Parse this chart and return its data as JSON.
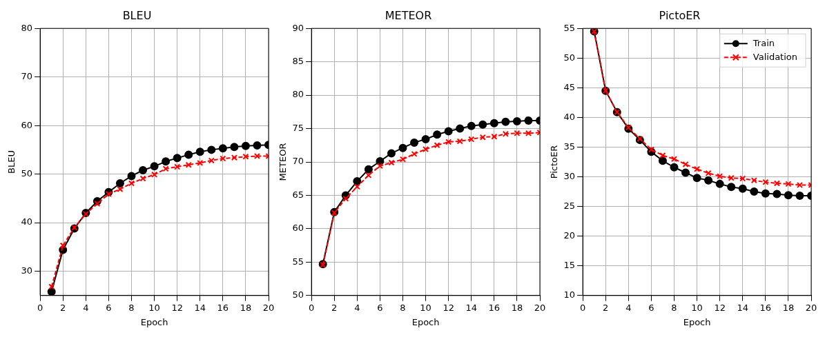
{
  "chart_data": [
    {
      "type": "line",
      "title": "BLEU",
      "xlabel": "Epoch",
      "ylabel": "BLEU",
      "x": [
        1,
        2,
        3,
        4,
        5,
        6,
        7,
        8,
        9,
        10,
        11,
        12,
        13,
        14,
        15,
        16,
        17,
        18,
        19,
        20
      ],
      "xlim": [
        0,
        20
      ],
      "xticks": [
        0,
        2,
        4,
        6,
        8,
        10,
        12,
        14,
        16,
        18,
        20
      ],
      "ylim": [
        25,
        80
      ],
      "yticks": [
        30,
        40,
        50,
        60,
        70,
        80
      ],
      "grid": true,
      "legend": false,
      "series": [
        {
          "color": "#000000",
          "marker": "circle",
          "line_style": "solid",
          "values": [
            25.8,
            34.4,
            38.8,
            42,
            44.4,
            46.3,
            48.1,
            49.6,
            50.8,
            51.6,
            52.6,
            53.3,
            54,
            54.6,
            55,
            55.3,
            55.6,
            55.8,
            55.9,
            56
          ]
        },
        {
          "color": "#ff0000",
          "marker": "cross",
          "line_style": "dashed",
          "values": [
            26.8,
            35.3,
            39,
            41.8,
            43.9,
            45.9,
            46.9,
            48.1,
            49.1,
            49.9,
            51.1,
            51.5,
            51.9,
            52.3,
            52.8,
            53.2,
            53.4,
            53.6,
            53.7,
            53.7
          ]
        }
      ]
    },
    {
      "type": "line",
      "title": "METEOR",
      "xlabel": "Epoch",
      "ylabel": "METEOR",
      "x": [
        1,
        2,
        3,
        4,
        5,
        6,
        7,
        8,
        9,
        10,
        11,
        12,
        13,
        14,
        15,
        16,
        17,
        18,
        19,
        20
      ],
      "xlim": [
        0,
        20
      ],
      "xticks": [
        0,
        2,
        4,
        6,
        8,
        10,
        12,
        14,
        16,
        18,
        20
      ],
      "ylim": [
        50,
        90
      ],
      "yticks": [
        50,
        55,
        60,
        65,
        70,
        75,
        80,
        85,
        90
      ],
      "grid": true,
      "legend": false,
      "series": [
        {
          "color": "#000000",
          "marker": "circle",
          "line_style": "solid",
          "values": [
            54.7,
            62.5,
            65,
            67.1,
            68.9,
            70.1,
            71.3,
            72.1,
            72.9,
            73.4,
            74.1,
            74.6,
            75,
            75.4,
            75.6,
            75.8,
            76,
            76.1,
            76.2,
            76.2
          ]
        },
        {
          "color": "#ff0000",
          "marker": "cross",
          "line_style": "dashed",
          "values": [
            54.6,
            62.4,
            64.5,
            66.3,
            68,
            69.4,
            69.9,
            70.4,
            71.2,
            71.9,
            72.5,
            73,
            73.1,
            73.4,
            73.7,
            73.8,
            74.2,
            74.3,
            74.3,
            74.4
          ]
        }
      ]
    },
    {
      "type": "line",
      "title": "PictoER",
      "xlabel": "Epoch",
      "ylabel": "PictoER",
      "x": [
        1,
        2,
        3,
        4,
        5,
        6,
        7,
        8,
        9,
        10,
        11,
        12,
        13,
        14,
        15,
        16,
        17,
        18,
        19,
        20
      ],
      "xlim": [
        0,
        20
      ],
      "xticks": [
        0,
        2,
        4,
        6,
        8,
        10,
        12,
        14,
        16,
        18,
        20
      ],
      "ylim": [
        10,
        55
      ],
      "yticks": [
        10,
        15,
        20,
        25,
        30,
        35,
        40,
        45,
        50,
        55
      ],
      "grid": true,
      "legend": "top right",
      "series": [
        {
          "name": "Train",
          "color": "#000000",
          "marker": "circle",
          "line_style": "solid",
          "values": [
            54.5,
            44.5,
            40.9,
            38.1,
            36.2,
            34.2,
            32.7,
            31.6,
            30.7,
            29.8,
            29.4,
            28.8,
            28.3,
            28,
            27.5,
            27.2,
            27.1,
            26.9,
            26.8,
            26.8
          ]
        },
        {
          "name": "Validation",
          "color": "#ff0000",
          "marker": "cross",
          "line_style": "dashed",
          "values": [
            54.5,
            44.5,
            40.9,
            38.3,
            36.4,
            34.6,
            33.6,
            33,
            32.1,
            31.3,
            30.6,
            30.1,
            29.8,
            29.7,
            29.4,
            29.1,
            28.9,
            28.8,
            28.6,
            28.6
          ]
        }
      ]
    }
  ]
}
